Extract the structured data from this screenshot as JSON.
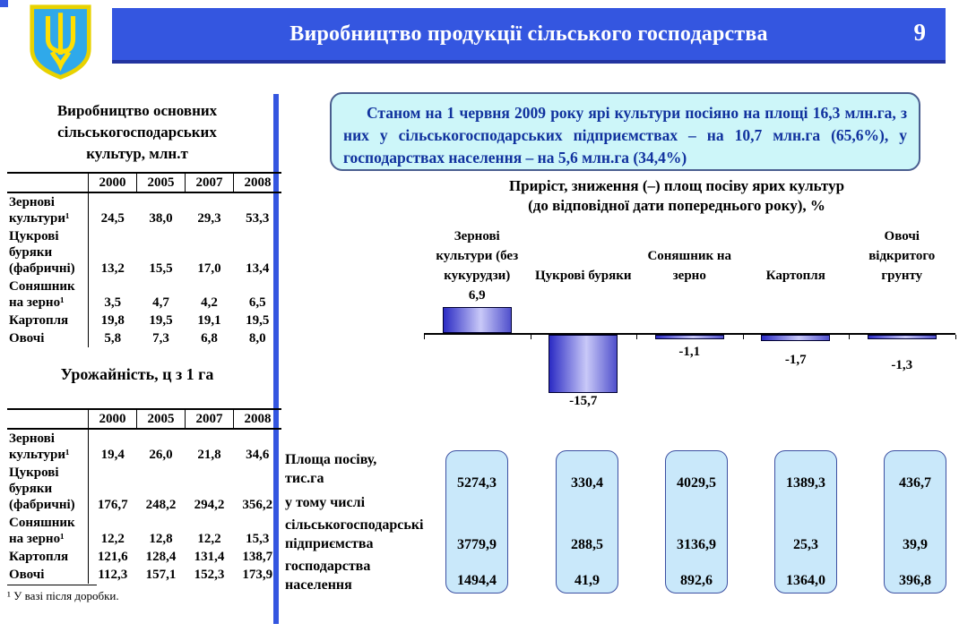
{
  "header": {
    "title": "Виробництво продукції сільського господарства",
    "page_number": "9",
    "logo_icon": "ukraine-coat-of-arms"
  },
  "left_panel": {
    "table1": {
      "title": "Виробництво основних\nсільськогосподарських\nкультур, млн.т",
      "columns": [
        "2000",
        "2005",
        "2007",
        "2008"
      ],
      "rows": [
        {
          "label": "Зернові\nкультури¹",
          "values": [
            "24,5",
            "38,0",
            "29,3",
            "53,3"
          ]
        },
        {
          "label": "Цукрові\nбуряки\n(фабричні)",
          "values": [
            "13,2",
            "15,5",
            "17,0",
            "13,4"
          ]
        },
        {
          "label": "Соняшник\nна зерно¹",
          "values": [
            "3,5",
            "4,7",
            "4,2",
            "6,5"
          ]
        },
        {
          "label": "Картопля",
          "values": [
            "19,8",
            "19,5",
            "19,1",
            "19,5"
          ]
        },
        {
          "label": "Овочі",
          "values": [
            "5,8",
            "7,3",
            "6,8",
            "8,0"
          ]
        }
      ]
    },
    "table2": {
      "title": "Урожайність, ц  з 1 га",
      "columns": [
        "2000",
        "2005",
        "2007",
        "2008"
      ],
      "rows": [
        {
          "label": "Зернові\nкультури¹",
          "values": [
            "19,4",
            "26,0",
            "21,8",
            "34,6"
          ]
        },
        {
          "label": "Цукрові\nбуряки\n(фабричні)",
          "values": [
            "176,7",
            "248,2",
            "294,2",
            "356,2"
          ]
        },
        {
          "label": "Соняшник\nна зерно¹",
          "values": [
            "12,2",
            "12,8",
            "12,2",
            "15,3"
          ]
        },
        {
          "label": "Картопля",
          "values": [
            "121,6",
            "128,4",
            "131,4",
            "138,7"
          ]
        },
        {
          "label": "Овочі",
          "values": [
            "112,3",
            "157,1",
            "152,3",
            "173,9"
          ]
        }
      ]
    },
    "footnote": "¹ У вазі після доробки."
  },
  "info_box": {
    "text": "Станом на 1 червня 2009 року ярі культури посіяно на площі 16,3 млн.га, з них у сільськогосподарських підприємствах – на 10,7 млн.га (65,6%), у господарствах населення – на 5,6 млн.га (34,4%)"
  },
  "chart_data": {
    "type": "bar",
    "title": "Приріст, зниження (–) площ посіву ярих культур\n(до відповідної дати попереднього року), %",
    "categories": [
      "Зернові\nкультури (без\nкукурудзи)",
      "Цукрові буряки",
      "Соняшник на\nзерно",
      "Картопля",
      "Овочі\nвідкритого\nгрунту"
    ],
    "values": [
      6.9,
      -15.7,
      -1.1,
      -1.7,
      -1.3
    ],
    "value_labels": [
      "6,9",
      "-15,7",
      "-1,1",
      "-1,7",
      "-1,3"
    ],
    "xlabel": "",
    "ylabel": "",
    "ylim": [
      -18,
      9
    ],
    "grid": false,
    "legend": false,
    "bar_gradient": [
      "#2b2bc4",
      "#c9c9f8",
      "#5050cc"
    ]
  },
  "area_section": {
    "row_labels": [
      "Площа посіву,\nтис.га",
      "у тому числі",
      "сільськогосподарські\nпідприємства",
      "господарства\nнаселення"
    ],
    "boxes": [
      {
        "total": "5274,3",
        "enterprises": "3779,9",
        "households": "1494,4"
      },
      {
        "total": "330,4",
        "enterprises": "288,5",
        "households": "41,9"
      },
      {
        "total": "4029,5",
        "enterprises": "3136,9",
        "households": "892,6"
      },
      {
        "total": "1389,3",
        "enterprises": "25,3",
        "households": "1364,0"
      },
      {
        "total": "436,7",
        "enterprises": "39,9",
        "households": "396,8"
      }
    ]
  },
  "colors": {
    "header_blue": "#3456e0",
    "header_shadow": "#2334a0",
    "info_box_bg": "#cdf6f9",
    "info_text_blue": "#11329e",
    "area_box_bg": "#c9e8fa",
    "area_box_border": "#3c50a2"
  }
}
